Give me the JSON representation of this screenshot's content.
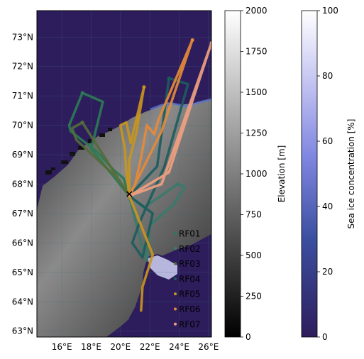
{
  "map": {
    "lat_labels": [
      "73°N",
      "72°N",
      "71°N",
      "70°N",
      "69°N",
      "68°N",
      "67°N",
      "66°N",
      "65°N",
      "64°N",
      "63°N"
    ],
    "lat_values": [
      73,
      72,
      71,
      70,
      69,
      68,
      67,
      66,
      65,
      64,
      63
    ],
    "lon_labels": [
      "16°E",
      "18°E",
      "20°E",
      "22°E",
      "24°E",
      "26°E"
    ],
    "lon_values": [
      16,
      18,
      20,
      22,
      24,
      26
    ],
    "lat_range": [
      62.8,
      73.9
    ],
    "lon_range": [
      14.3,
      26.2
    ],
    "ocean_color": "#2e1d5c",
    "base_marker": {
      "lon": 20.6,
      "lat": 67.65,
      "symbol": "×"
    }
  },
  "colorbars": {
    "elevation": {
      "label": "Elevation [m]",
      "range": [
        0,
        2000
      ],
      "ticks": [
        "0",
        "250",
        "500",
        "750",
        "1000",
        "1250",
        "1500",
        "1750",
        "2000"
      ],
      "colors": [
        "#000000",
        "#ffffff"
      ]
    },
    "seaice": {
      "label": "Sea ice concentration [%]",
      "range": [
        0,
        100
      ],
      "ticks": [
        "0",
        "20",
        "40",
        "60",
        "80",
        "100"
      ],
      "colors": [
        "#2e1d5c",
        "#3b4fa0",
        "#7f86e0",
        "#c9c9f3",
        "#ffffff"
      ]
    }
  },
  "legend": {
    "entries": [
      {
        "label": "RF01",
        "color": "#2d7a55"
      },
      {
        "label": "RF02",
        "color": "#3a7a6a"
      },
      {
        "label": "RF03",
        "color": "#556b3a"
      },
      {
        "label": "RF04",
        "color": "#1d5c5c"
      },
      {
        "label": "RF05",
        "color": "#c8951e"
      },
      {
        "label": "RF06",
        "color": "#e58a3a"
      },
      {
        "label": "RF07",
        "color": "#f0a080"
      }
    ]
  },
  "chart_data": {
    "type": "map",
    "flights": [
      {
        "label": "RF01",
        "color": "#2d7a55",
        "track": [
          [
            20.6,
            67.6
          ],
          [
            20.2,
            68.2
          ],
          [
            19.5,
            68.5
          ],
          [
            18.4,
            69.1
          ],
          [
            16.6,
            69.8
          ],
          [
            16.5,
            70.0
          ],
          [
            17.4,
            71.1
          ],
          [
            18.8,
            70.8
          ],
          [
            18.0,
            69.2
          ],
          [
            20.6,
            67.6
          ]
        ]
      },
      {
        "label": "RF02",
        "color": "#3a7a6a",
        "track": [
          [
            20.6,
            67.6
          ],
          [
            21.4,
            66.0
          ],
          [
            21.8,
            65.4
          ],
          [
            22.0,
            66.6
          ],
          [
            23.6,
            67.3
          ],
          [
            24.4,
            67.9
          ],
          [
            23.9,
            68.0
          ],
          [
            21.6,
            67.2
          ],
          [
            20.6,
            67.6
          ]
        ]
      },
      {
        "label": "RF03",
        "color": "#556b3a",
        "track": [
          [
            20.6,
            67.6
          ],
          [
            19.8,
            68.2
          ],
          [
            17.0,
            69.5
          ],
          [
            16.7,
            69.9
          ],
          [
            17.4,
            70.1
          ],
          [
            20.6,
            67.6
          ]
        ]
      },
      {
        "label": "RF04",
        "color": "#1d5c5c",
        "track": [
          [
            20.6,
            67.6
          ],
          [
            22.5,
            68.6
          ],
          [
            23.3,
            71.6
          ],
          [
            24.6,
            71.4
          ],
          [
            23.0,
            68.6
          ],
          [
            21.3,
            66.7
          ],
          [
            20.8,
            66.0
          ],
          [
            21.5,
            65.5
          ],
          [
            22.2,
            67.0
          ],
          [
            20.6,
            67.6
          ]
        ]
      },
      {
        "label": "RF05",
        "color": "#c8951e",
        "track": [
          [
            20.6,
            67.6
          ],
          [
            20.4,
            68.4
          ],
          [
            20.3,
            69.2
          ],
          [
            20.0,
            70.0
          ],
          [
            20.4,
            70.1
          ],
          [
            20.7,
            69.4
          ],
          [
            21.6,
            71.3
          ],
          [
            21.1,
            69.8
          ],
          [
            20.6,
            68.8
          ],
          [
            20.6,
            67.6
          ],
          [
            21.4,
            66.6
          ],
          [
            22.2,
            65.6
          ],
          [
            21.5,
            64.5
          ],
          [
            21.4,
            63.7
          ]
        ]
      },
      {
        "label": "RF06",
        "color": "#e58a3a",
        "track": [
          [
            20.6,
            67.6
          ],
          [
            21.0,
            68.0
          ],
          [
            21.4,
            68.9
          ],
          [
            21.8,
            70.0
          ],
          [
            22.3,
            69.7
          ],
          [
            22.6,
            70.2
          ],
          [
            24.9,
            72.9
          ],
          [
            22.8,
            69.8
          ],
          [
            21.2,
            68.2
          ],
          [
            20.6,
            67.6
          ]
        ]
      },
      {
        "label": "RF07",
        "color": "#f0a080",
        "track": [
          [
            20.6,
            67.6
          ],
          [
            23.3,
            68.4
          ],
          [
            26.2,
            72.8
          ],
          [
            22.8,
            68.0
          ],
          [
            20.6,
            67.6
          ]
        ]
      }
    ]
  }
}
